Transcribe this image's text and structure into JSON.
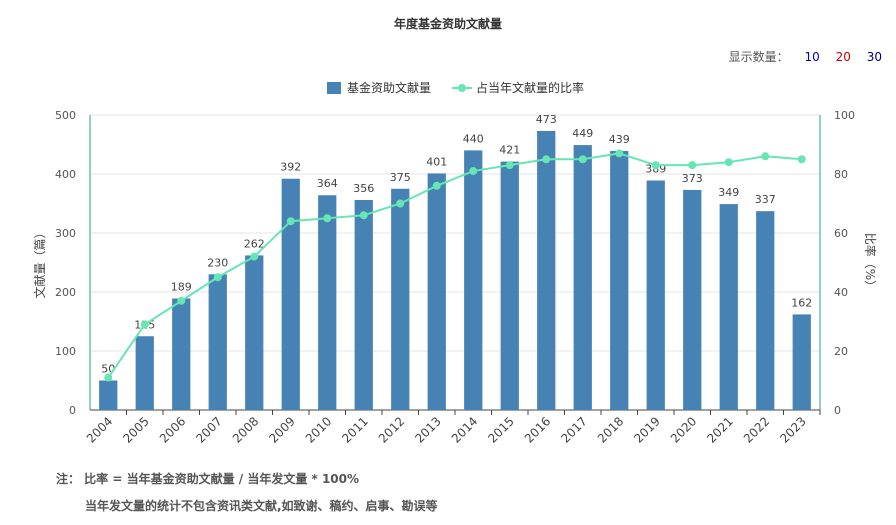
{
  "title": "年度基金资助文献量",
  "count_selector": {
    "label": "显示数量：",
    "options": [
      {
        "label": "10",
        "color": "#0000cc"
      },
      {
        "label": "20",
        "color": "#cc0000"
      },
      {
        "label": "30",
        "color": "#000080"
      }
    ]
  },
  "notes": {
    "line1": "注： 比率 = 当年基金资助文献量 / 当年发文量 * 100%",
    "line2": "当年发文量的统计不包含资讯类文献,如致谢、稿约、启事、勘误等"
  },
  "chart_data": {
    "type": "bar",
    "categories": [
      "2004",
      "2005",
      "2006",
      "2007",
      "2008",
      "2009",
      "2010",
      "2011",
      "2012",
      "2013",
      "2014",
      "2015",
      "2016",
      "2017",
      "2018",
      "2019",
      "2020",
      "2021",
      "2022",
      "2023"
    ],
    "series": [
      {
        "name": "基金资助文献量",
        "type": "bar",
        "axis": "left",
        "color": "#4682b4",
        "values": [
          50,
          125,
          189,
          230,
          262,
          392,
          364,
          356,
          375,
          401,
          440,
          421,
          473,
          449,
          439,
          389,
          373,
          349,
          337,
          162
        ]
      },
      {
        "name": "占当年文献量的比率",
        "type": "line",
        "axis": "right",
        "color": "#66e6b3",
        "values": [
          11,
          29,
          37,
          45,
          52,
          64,
          65,
          66,
          70,
          76,
          81,
          83,
          85,
          85,
          87,
          83,
          83,
          84,
          86,
          85
        ]
      }
    ],
    "ylabel_left": "文献量（篇）",
    "ylabel_right": "比率（%）",
    "ylim_left": [
      0,
      500
    ],
    "ylim_right": [
      0,
      100
    ],
    "yticks_left": [
      "0",
      "100",
      "200",
      "300",
      "400",
      "500"
    ],
    "yticks_right": [
      "0",
      "20",
      "40",
      "60",
      "80",
      "100"
    ],
    "legend_position": "top-center",
    "grid": true
  }
}
